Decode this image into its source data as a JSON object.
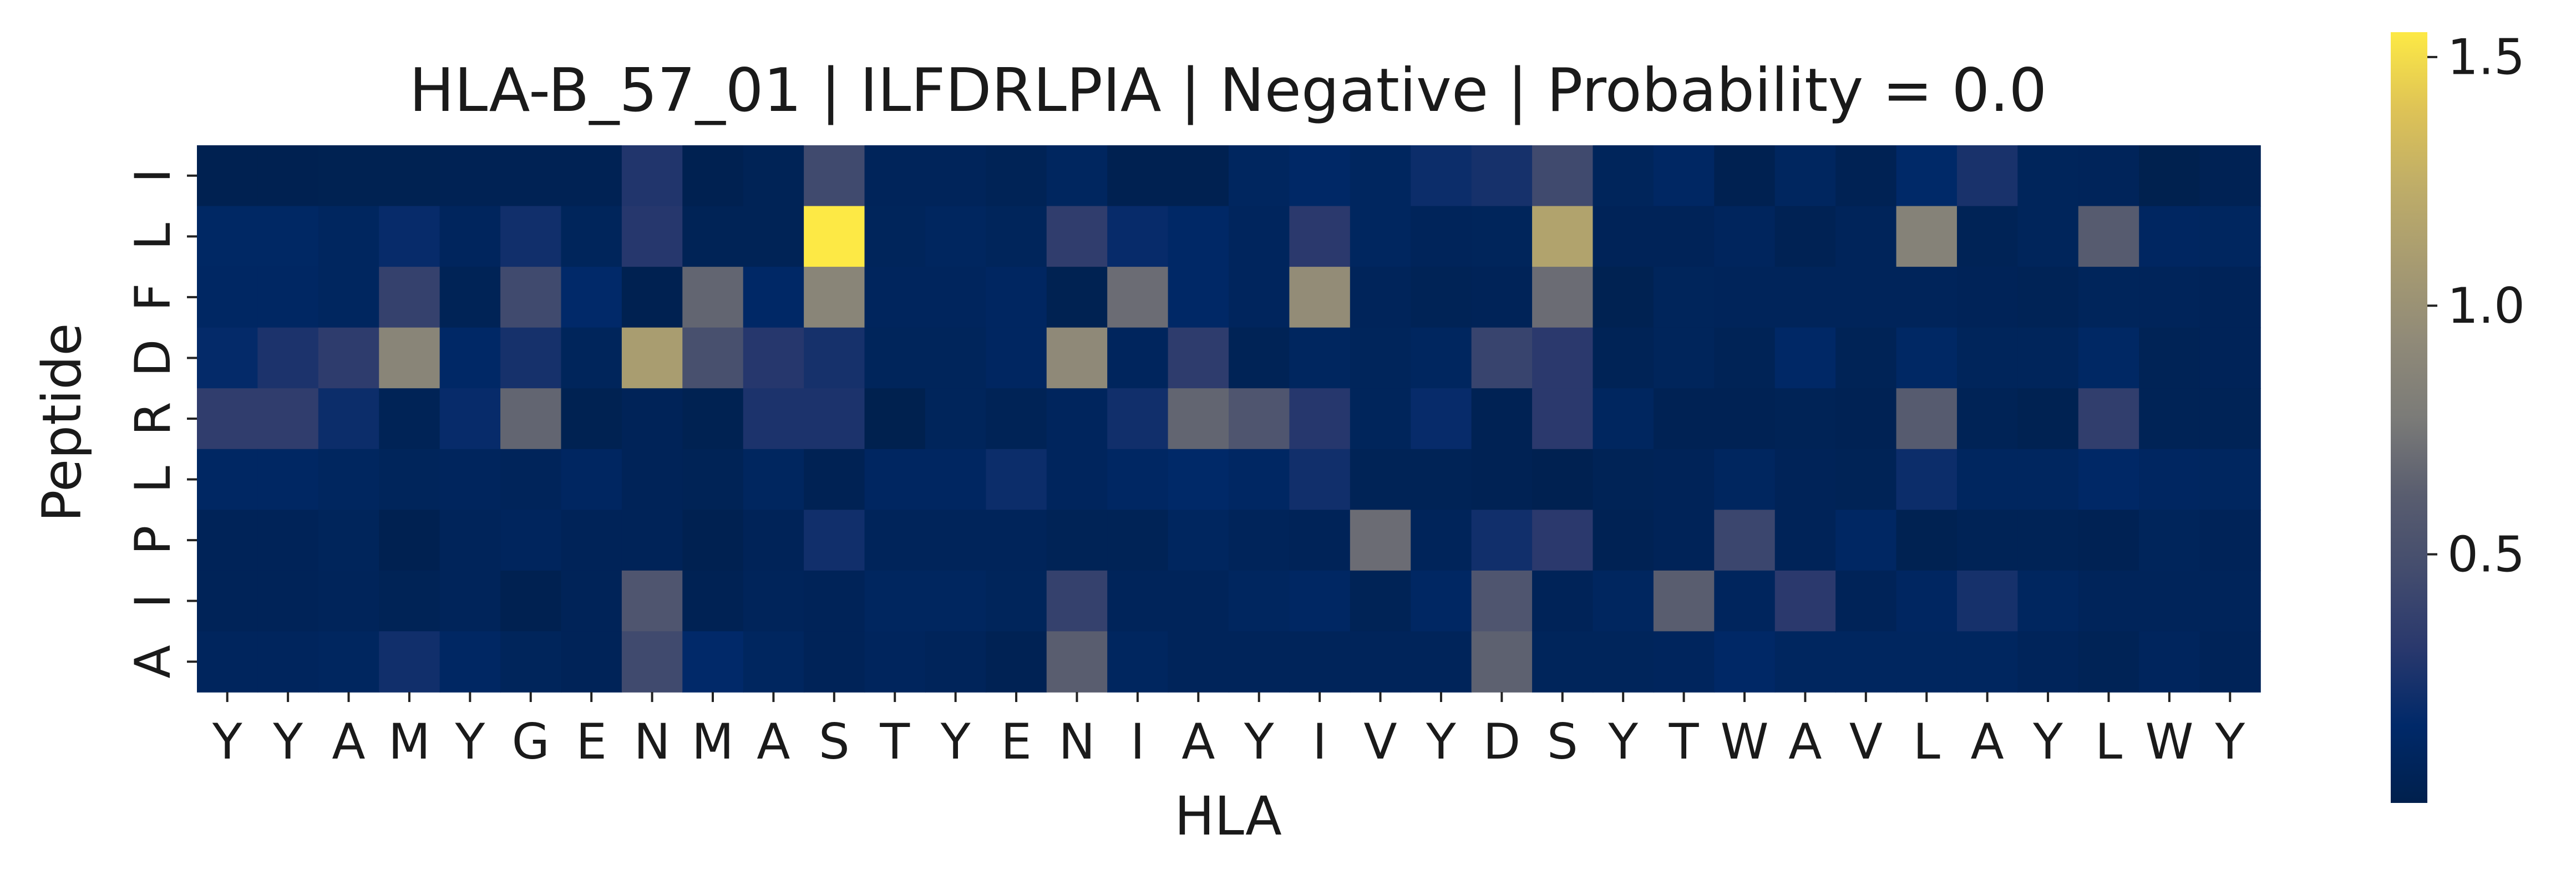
{
  "chart_data": {
    "type": "heatmap",
    "title": "HLA-B_57_01 | ILFDRLPIA | Negative | Probability = 0.0",
    "xlabel": "HLA",
    "ylabel": "Peptide",
    "x_tick_labels": [
      "Y",
      "Y",
      "A",
      "M",
      "Y",
      "G",
      "E",
      "N",
      "M",
      "A",
      "S",
      "T",
      "Y",
      "E",
      "N",
      "I",
      "A",
      "Y",
      "I",
      "V",
      "Y",
      "D",
      "S",
      "Y",
      "T",
      "W",
      "A",
      "V",
      "L",
      "A",
      "Y",
      "L",
      "W",
      "Y"
    ],
    "y_tick_labels": [
      "I",
      "L",
      "F",
      "D",
      "R",
      "L",
      "P",
      "I",
      "A"
    ],
    "colorbar": {
      "colormap": "cividis",
      "range": [
        0.0,
        1.55
      ],
      "ticks": [
        0.5,
        1.0,
        1.5
      ],
      "tick_labels": [
        "0.5",
        "1.0",
        "1.5"
      ]
    },
    "values": [
      [
        0.02,
        0.02,
        0.03,
        0.03,
        0.04,
        0.04,
        0.04,
        0.28,
        0.02,
        0.05,
        0.45,
        0.07,
        0.07,
        0.05,
        0.1,
        0.02,
        0.02,
        0.1,
        0.14,
        0.1,
        0.2,
        0.24,
        0.45,
        0.08,
        0.12,
        0.02,
        0.1,
        0.04,
        0.15,
        0.25,
        0.08,
        0.07,
        0.01,
        0.04
      ],
      [
        0.13,
        0.13,
        0.1,
        0.18,
        0.09,
        0.22,
        0.08,
        0.3,
        0.05,
        0.05,
        1.55,
        0.08,
        0.1,
        0.08,
        0.35,
        0.18,
        0.14,
        0.09,
        0.32,
        0.1,
        0.07,
        0.08,
        1.15,
        0.06,
        0.06,
        0.09,
        0.04,
        0.07,
        0.85,
        0.05,
        0.08,
        0.6,
        0.11,
        0.1
      ],
      [
        0.12,
        0.12,
        0.1,
        0.38,
        0.05,
        0.45,
        0.16,
        0.02,
        0.66,
        0.14,
        0.88,
        0.09,
        0.09,
        0.11,
        0.03,
        0.7,
        0.14,
        0.09,
        0.95,
        0.07,
        0.05,
        0.06,
        0.7,
        0.03,
        0.08,
        0.07,
        0.07,
        0.07,
        0.07,
        0.06,
        0.05,
        0.08,
        0.07,
        0.06
      ],
      [
        0.17,
        0.26,
        0.34,
        0.88,
        0.14,
        0.24,
        0.08,
        1.1,
        0.5,
        0.3,
        0.24,
        0.08,
        0.08,
        0.11,
        0.92,
        0.09,
        0.34,
        0.05,
        0.1,
        0.08,
        0.1,
        0.4,
        0.32,
        0.05,
        0.08,
        0.05,
        0.14,
        0.05,
        0.13,
        0.08,
        0.08,
        0.13,
        0.05,
        0.06
      ],
      [
        0.35,
        0.35,
        0.2,
        0.05,
        0.18,
        0.66,
        0.03,
        0.06,
        0.03,
        0.26,
        0.26,
        0.01,
        0.08,
        0.05,
        0.09,
        0.22,
        0.66,
        0.55,
        0.3,
        0.08,
        0.18,
        0.04,
        0.32,
        0.1,
        0.04,
        0.04,
        0.05,
        0.04,
        0.6,
        0.05,
        0.03,
        0.36,
        0.05,
        0.05
      ],
      [
        0.12,
        0.12,
        0.1,
        0.08,
        0.09,
        0.07,
        0.11,
        0.06,
        0.05,
        0.1,
        0.04,
        0.11,
        0.11,
        0.2,
        0.09,
        0.12,
        0.15,
        0.12,
        0.22,
        0.05,
        0.05,
        0.04,
        0.02,
        0.05,
        0.06,
        0.1,
        0.06,
        0.05,
        0.2,
        0.1,
        0.1,
        0.14,
        0.11,
        0.1
      ],
      [
        0.06,
        0.06,
        0.08,
        0.02,
        0.07,
        0.09,
        0.06,
        0.06,
        0.02,
        0.06,
        0.22,
        0.07,
        0.07,
        0.07,
        0.05,
        0.05,
        0.1,
        0.07,
        0.06,
        0.7,
        0.07,
        0.22,
        0.32,
        0.04,
        0.06,
        0.42,
        0.06,
        0.12,
        0.03,
        0.05,
        0.05,
        0.04,
        0.08,
        0.06
      ],
      [
        0.06,
        0.06,
        0.07,
        0.05,
        0.07,
        0.02,
        0.06,
        0.55,
        0.04,
        0.07,
        0.06,
        0.1,
        0.1,
        0.08,
        0.38,
        0.07,
        0.07,
        0.1,
        0.12,
        0.05,
        0.12,
        0.55,
        0.06,
        0.1,
        0.62,
        0.09,
        0.32,
        0.06,
        0.11,
        0.24,
        0.1,
        0.07,
        0.07,
        0.07
      ],
      [
        0.09,
        0.09,
        0.1,
        0.22,
        0.12,
        0.08,
        0.06,
        0.45,
        0.16,
        0.1,
        0.06,
        0.09,
        0.07,
        0.04,
        0.62,
        0.1,
        0.07,
        0.07,
        0.07,
        0.07,
        0.07,
        0.64,
        0.08,
        0.08,
        0.09,
        0.14,
        0.1,
        0.1,
        0.1,
        0.1,
        0.07,
        0.05,
        0.09,
        0.06
      ]
    ]
  }
}
